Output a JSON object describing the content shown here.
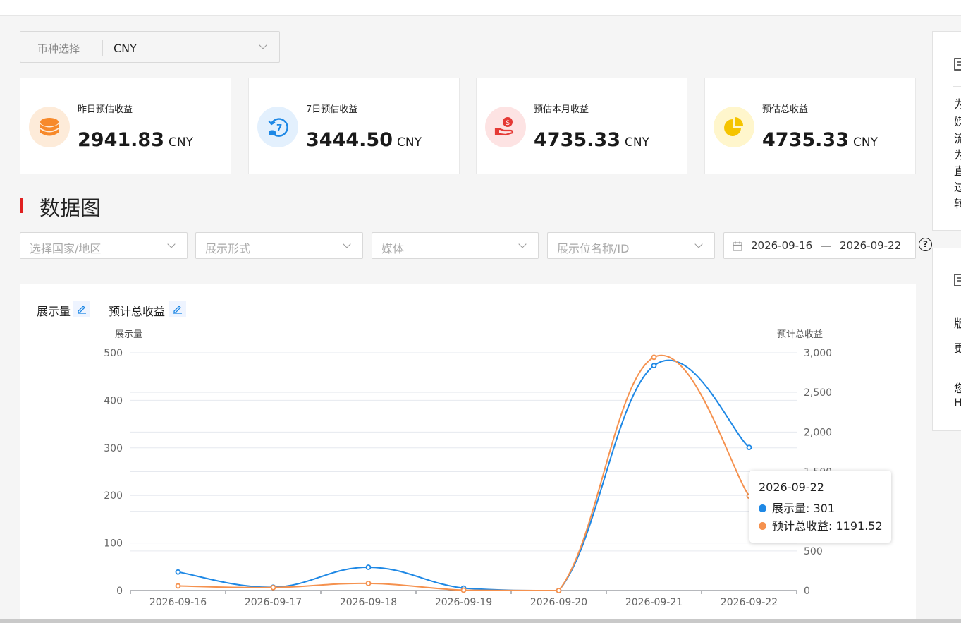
{
  "currency_select": {
    "label": "币种选择",
    "value": "CNY"
  },
  "summary_cards": [
    {
      "title": "昨日预估收益",
      "value": "2941.83",
      "unit": "CNY",
      "icon": "coins-stack-icon",
      "icon_bg": "#fdebd9",
      "icon_color": "#f7892a"
    },
    {
      "title": "7日预估收益",
      "value": "3444.50",
      "unit": "CNY",
      "icon": "seven-day-refresh-icon",
      "icon_bg": "#e3f0fd",
      "icon_color": "#1e88e5"
    },
    {
      "title": "预估本月收益",
      "value": "4735.33",
      "unit": "CNY",
      "icon": "hand-money-icon",
      "icon_bg": "#fde3e3",
      "icon_color": "#e53935"
    },
    {
      "title": "预估总收益",
      "value": "4735.33",
      "unit": "CNY",
      "icon": "pie-chart-icon",
      "icon_bg": "#fff6cc",
      "icon_color": "#f5c400"
    }
  ],
  "section_title": "数据图",
  "filters": [
    {
      "placeholder": "选择国家/地区"
    },
    {
      "placeholder": "展示形式"
    },
    {
      "placeholder": "媒体"
    },
    {
      "placeholder": "展示位名称/ID"
    }
  ],
  "date_range": {
    "start": "2026-09-16",
    "separator": "—",
    "end": "2026-09-22"
  },
  "help_label": "?",
  "metric_selectors": [
    "展示量",
    "预计总收益"
  ],
  "side_panel_top_chars": [
    "为",
    "媒",
    "流",
    "为",
    "直",
    "过",
    "转"
  ],
  "side_panel_bottom_chars": [
    "版",
    "更",
    "您",
    "H"
  ],
  "colors": {
    "impressions": "#1e88e5",
    "revenue": "#f5914e",
    "accent": "#e02020"
  },
  "chart_data": {
    "type": "line",
    "categories": [
      "2026-09-16",
      "2026-09-17",
      "2026-09-18",
      "2026-09-19",
      "2026-09-20",
      "2026-09-21",
      "2026-09-22"
    ],
    "ylabel_left": "展示量",
    "ylabel_right": "预计总收益",
    "ylim_left": [
      0,
      500
    ],
    "ylim_right": [
      0,
      3000
    ],
    "yticks_left": [
      "0",
      "100",
      "200",
      "300",
      "400",
      "500"
    ],
    "yticks_right": [
      "0",
      "500",
      "1,000",
      "1,500",
      "2,000",
      "2,500",
      "3,000"
    ],
    "series": [
      {
        "name": "展示量",
        "axis": "left",
        "color": "#1e88e5",
        "values": [
          39,
          7,
          49,
          5,
          0,
          473,
          301
        ]
      },
      {
        "name": "预计总收益",
        "axis": "right",
        "color": "#f5914e",
        "values": [
          58,
          38,
          90,
          5,
          0,
          2943,
          1191.52
        ]
      }
    ],
    "grid": true,
    "tooltip": {
      "date": "2026-09-22",
      "rows": [
        {
          "label": "展示量: 301",
          "color": "#1e88e5"
        },
        {
          "label": "预计总收益: 1191.52",
          "color": "#f5914e"
        }
      ]
    }
  }
}
